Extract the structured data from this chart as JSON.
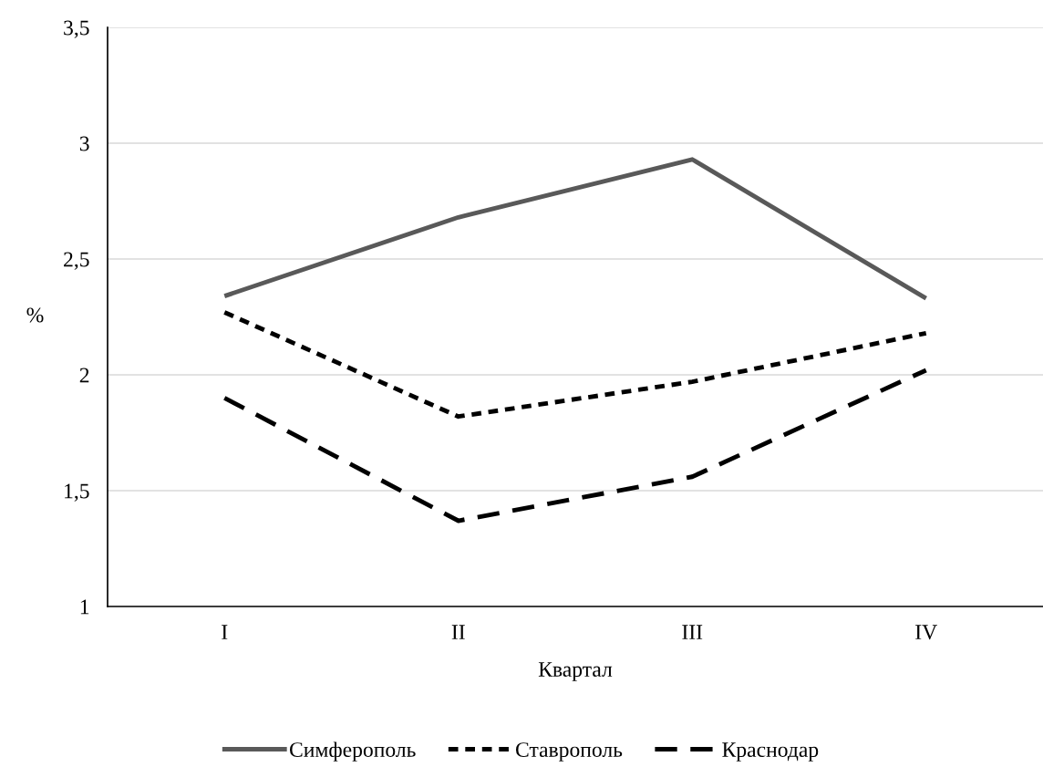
{
  "chart_data": {
    "type": "line",
    "xlabel": "Квартал",
    "ylabel": "%",
    "categories": [
      "I",
      "II",
      "III",
      "IV"
    ],
    "series": [
      {
        "name": "Симферополь",
        "color": "#595959",
        "line_style": "solid",
        "values": [
          2.34,
          2.68,
          2.93,
          2.33
        ]
      },
      {
        "name": "Ставрополь",
        "color": "#000000",
        "line_style": "dotted",
        "values": [
          2.27,
          1.82,
          1.97,
          2.18
        ]
      },
      {
        "name": "Краснодар",
        "color": "#000000",
        "line_style": "dashed",
        "values": [
          1.9,
          1.37,
          1.56,
          2.02
        ]
      }
    ],
    "ylim": [
      1,
      3.5
    ],
    "yticks": [
      1,
      {
        "value": 1.5,
        "label": "1,5"
      },
      2,
      {
        "value": 2.5,
        "label": "2,5"
      },
      3,
      {
        "value": 3.5,
        "label": "3,5"
      }
    ],
    "grid": "y",
    "legend": "bottom",
    "marker": "none"
  }
}
